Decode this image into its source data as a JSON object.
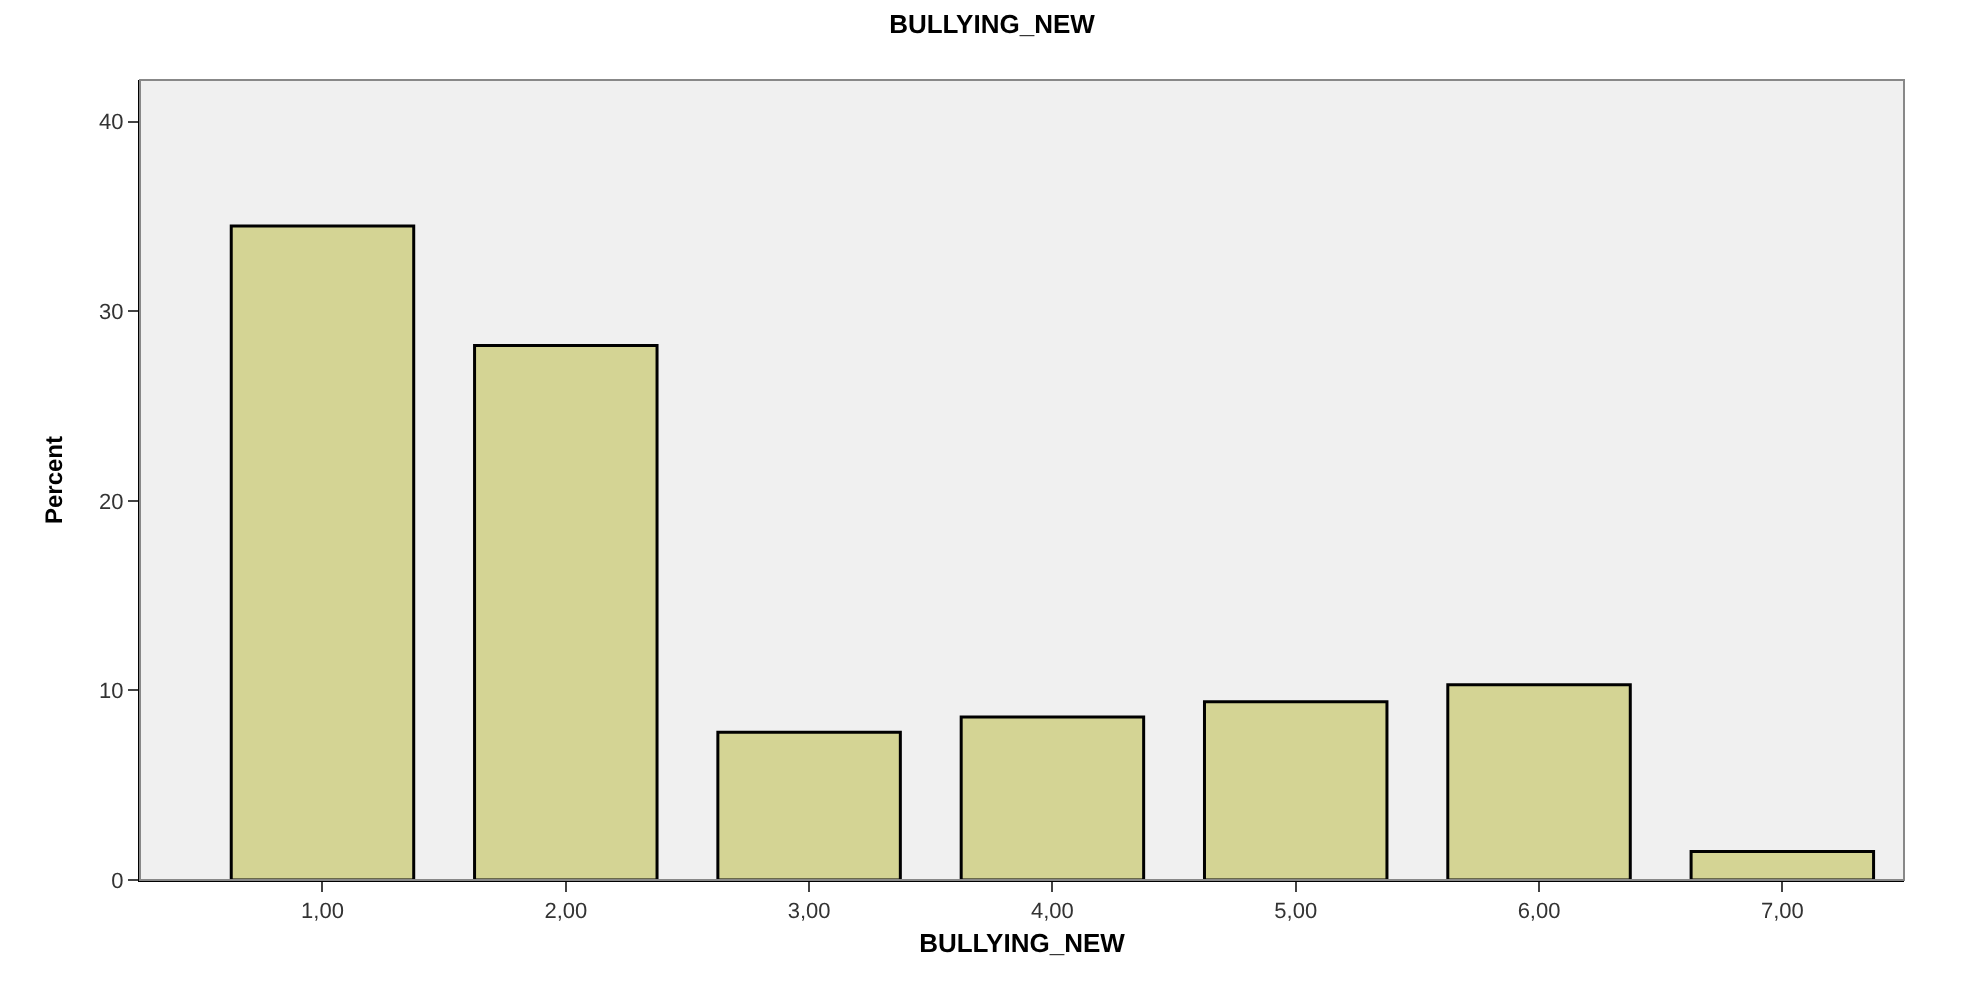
{
  "chart_data": {
    "type": "bar",
    "title": "BULLYING_NEW",
    "xlabel": "BULLYING_NEW",
    "ylabel": "Percent",
    "categories": [
      "1,00",
      "2,00",
      "3,00",
      "4,00",
      "5,00",
      "6,00",
      "7,00"
    ],
    "values": [
      34.5,
      28.2,
      7.8,
      8.6,
      9.4,
      10.3,
      1.5
    ],
    "color": "#d4d494",
    "ylim": [
      0,
      42.2
    ],
    "yticks": [
      0,
      10,
      20,
      30,
      40
    ],
    "grid": false
  }
}
